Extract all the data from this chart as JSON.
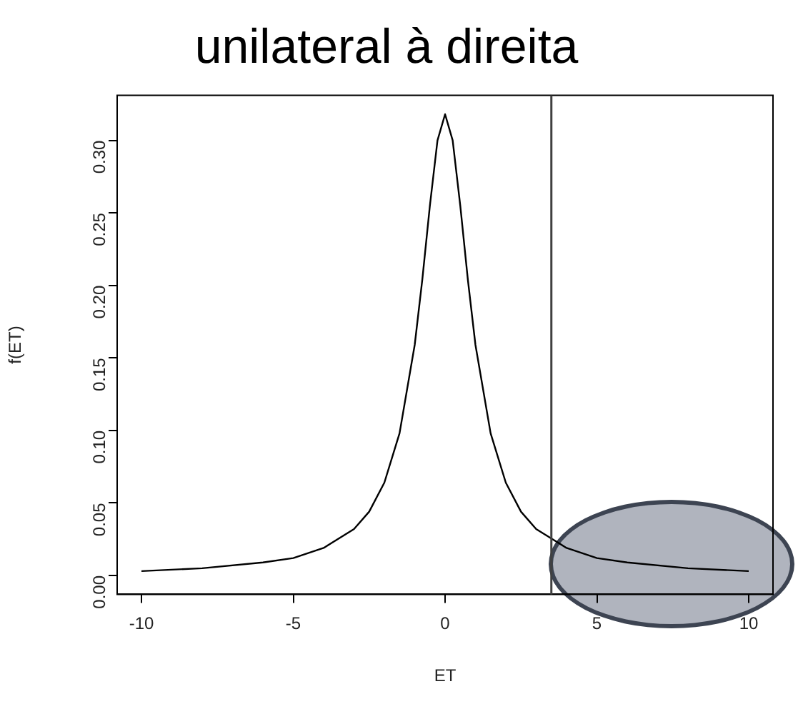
{
  "chart_data": {
    "type": "line",
    "title": "unilateral à direita",
    "xlabel": "ET",
    "ylabel": "f(ET)",
    "x": [
      -10,
      -8,
      -6,
      -5,
      -4,
      -3,
      -2.5,
      -2,
      -1.5,
      -1,
      -0.75,
      -0.5,
      -0.25,
      0,
      0.25,
      0.5,
      0.75,
      1,
      1.5,
      2,
      2.5,
      3,
      4,
      5,
      6,
      8,
      10
    ],
    "series": [
      {
        "color": "#000000",
        "values": [
          0.003,
          0.005,
          0.009,
          0.012,
          0.019,
          0.032,
          0.044,
          0.064,
          0.098,
          0.159,
          0.204,
          0.255,
          0.3,
          0.318,
          0.3,
          0.255,
          0.204,
          0.159,
          0.098,
          0.064,
          0.044,
          0.032,
          0.019,
          0.012,
          0.009,
          0.005,
          0.003
        ]
      }
    ],
    "xlim": [
      -10.8,
      10.8
    ],
    "xticks": [
      -10,
      -5,
      0,
      5,
      10
    ],
    "ylim": [
      -0.013,
      0.331
    ],
    "yticks": [
      {
        "value": 0,
        "label": "0.00"
      },
      {
        "value": 0.05,
        "label": "0.05"
      },
      {
        "value": 0.1,
        "label": "0.10"
      },
      {
        "value": 0.15,
        "label": "0.15"
      },
      {
        "value": 0.2,
        "label": "0.20"
      },
      {
        "value": 0.25,
        "label": "0.25"
      },
      {
        "value": 0.3,
        "label": "0.30"
      }
    ],
    "ref_lines": [
      {
        "axis": "x",
        "value": 3.5,
        "color": "#404040"
      }
    ],
    "grid": false,
    "legend": false,
    "marker": "none",
    "line_style": "solid"
  }
}
